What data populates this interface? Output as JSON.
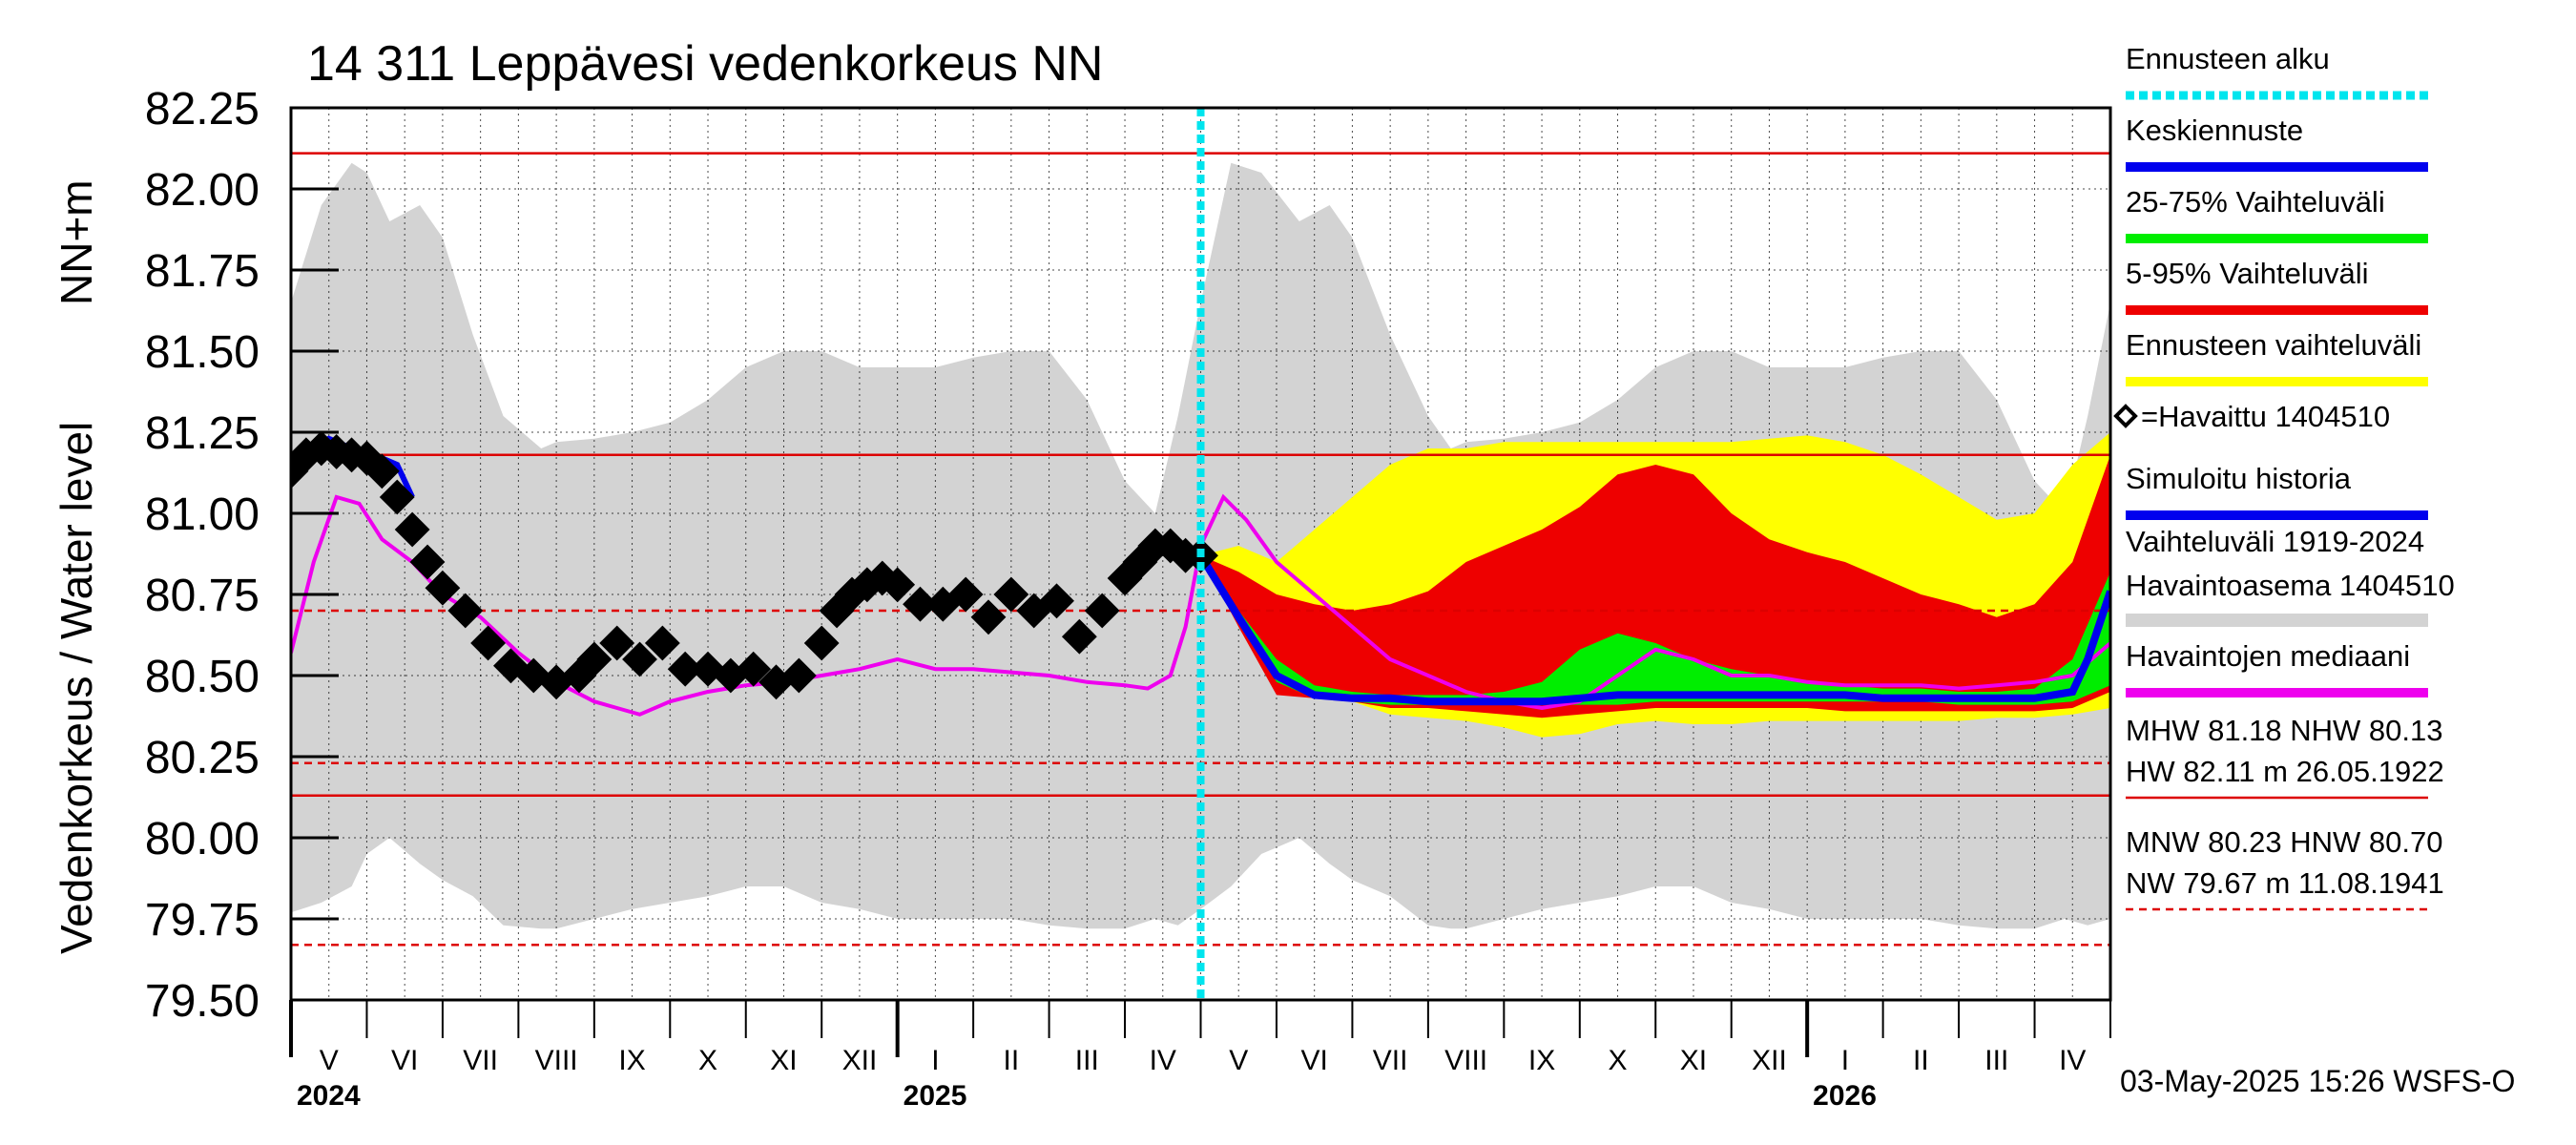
{
  "chart_data": {
    "type": "area",
    "title": "14 311 Leppävesi vedenkorkeus NN",
    "ylabel_main": "Vedenkorkeus / Water level",
    "ylabel_unit": "NN+m",
    "ylim": [
      79.5,
      82.25
    ],
    "yticks": [
      "82.25",
      "82.00",
      "81.75",
      "81.50",
      "81.25",
      "81.00",
      "80.75",
      "80.50",
      "80.25",
      "80.00",
      "79.75",
      "79.50"
    ],
    "x_start_month_index": 0,
    "month_labels": [
      "V",
      "VI",
      "VII",
      "VIII",
      "IX",
      "X",
      "XI",
      "XII",
      "I",
      "II",
      "III",
      "IV",
      "V",
      "VI",
      "VII",
      "VIII",
      "IX",
      "X",
      "XI",
      "XII",
      "I",
      "II",
      "III",
      "IV"
    ],
    "month_lengths": [
      31,
      30,
      31,
      31,
      30,
      31,
      30,
      31,
      31,
      28,
      31,
      30,
      31,
      30,
      31,
      31,
      30,
      31,
      30,
      31,
      31,
      28,
      31,
      30
    ],
    "years": [
      {
        "label": "2024",
        "month": 0
      },
      {
        "label": "2025",
        "month": 8
      },
      {
        "label": "2026",
        "month": 20
      }
    ],
    "forecast_start_month": 12,
    "reference_lines": [
      {
        "name": "HW",
        "value": 82.11,
        "style": "solid"
      },
      {
        "name": "MHW",
        "value": 81.18,
        "style": "solid"
      },
      {
        "name": "HNW",
        "value": 80.7,
        "style": "dashed"
      },
      {
        "name": "MNW",
        "value": 80.23,
        "style": "dashed"
      },
      {
        "name": "NHW",
        "value": 80.13,
        "style": "solid"
      },
      {
        "name": "NW",
        "value": 79.67,
        "style": "dashed"
      }
    ],
    "variation_range": {
      "name": "Vaihteluväli 1919-2024 Havaintoasema 1404510",
      "x_months": [
        0,
        0.4,
        0.8,
        1.0,
        1.3,
        1.7,
        2.0,
        2.4,
        2.8,
        3.3,
        3.5,
        4.0,
        4.5,
        5.0,
        5.5,
        6.0,
        6.5,
        7.0,
        7.5,
        8.0,
        8.5,
        9.0,
        9.5,
        10.0,
        10.5,
        11.0,
        11.4,
        11.7,
        12.0,
        12.4,
        12.8,
        13.3,
        13.7,
        14.0,
        14.5,
        15.0,
        15.3,
        15.5,
        16.0,
        16.5,
        17.0,
        17.5,
        18.0,
        18.5,
        19.0,
        19.5,
        20.0,
        20.5,
        21.0,
        21.5,
        22.0,
        22.5,
        23.0,
        23.4,
        23.7,
        24.0
      ],
      "upper": [
        81.65,
        81.95,
        82.08,
        82.05,
        81.9,
        81.95,
        81.85,
        81.55,
        81.3,
        81.2,
        81.22,
        81.23,
        81.25,
        81.28,
        81.35,
        81.45,
        81.5,
        81.5,
        81.45,
        81.45,
        81.45,
        81.48,
        81.5,
        81.5,
        81.35,
        81.1,
        81.0,
        81.3,
        81.65,
        82.08,
        82.05,
        81.9,
        81.95,
        81.85,
        81.55,
        81.3,
        81.2,
        81.22,
        81.23,
        81.25,
        81.28,
        81.35,
        81.45,
        81.5,
        81.5,
        81.45,
        81.45,
        81.45,
        81.48,
        81.5,
        81.5,
        81.35,
        81.1,
        81.0,
        81.3,
        81.65
      ],
      "lower": [
        79.77,
        79.8,
        79.85,
        79.95,
        80.0,
        79.92,
        79.87,
        79.82,
        79.73,
        79.72,
        79.72,
        79.75,
        79.78,
        79.8,
        79.82,
        79.85,
        79.85,
        79.8,
        79.78,
        79.75,
        79.75,
        79.75,
        79.75,
        79.73,
        79.72,
        79.72,
        79.75,
        79.73,
        79.78,
        79.85,
        79.95,
        80.0,
        79.92,
        79.87,
        79.82,
        79.73,
        79.72,
        79.72,
        79.75,
        79.78,
        79.8,
        79.82,
        79.85,
        79.85,
        79.8,
        79.78,
        79.75,
        79.75,
        79.75,
        79.75,
        79.73,
        79.72,
        79.72,
        79.75,
        79.73,
        79.75
      ]
    },
    "forecast_range": {
      "name": "Ennusteen vaihteluväli",
      "x_months": [
        12.0,
        12.5,
        13.0,
        13.5,
        14.0,
        14.5,
        15.0,
        15.5,
        16.0,
        16.5,
        17.0,
        17.5,
        18.0,
        18.5,
        19.0,
        19.5,
        20.0,
        20.5,
        21.0,
        21.5,
        22.0,
        22.5,
        23.0,
        23.5,
        24.0
      ],
      "upper": [
        80.87,
        80.9,
        80.85,
        80.95,
        81.05,
        81.15,
        81.2,
        81.2,
        81.22,
        81.22,
        81.22,
        81.22,
        81.22,
        81.22,
        81.22,
        81.23,
        81.24,
        81.22,
        81.18,
        81.12,
        81.05,
        80.98,
        81.0,
        81.15,
        81.25
      ],
      "lower": [
        80.87,
        80.72,
        80.58,
        80.44,
        80.42,
        80.38,
        80.37,
        80.36,
        80.34,
        80.31,
        80.32,
        80.35,
        80.36,
        80.35,
        80.35,
        80.36,
        80.36,
        80.36,
        80.36,
        80.36,
        80.36,
        80.37,
        80.37,
        80.38,
        80.4
      ]
    },
    "p5_95": {
      "name": "5-95% Vaihteluväli",
      "x_months": [
        12.0,
        12.5,
        13.0,
        13.5,
        14.0,
        14.5,
        15.0,
        15.5,
        16.0,
        16.5,
        17.0,
        17.5,
        18.0,
        18.5,
        19.0,
        19.5,
        20.0,
        20.5,
        21.0,
        21.5,
        22.0,
        22.5,
        23.0,
        23.5,
        24.0
      ],
      "upper": [
        80.87,
        80.82,
        80.75,
        80.72,
        80.7,
        80.72,
        80.76,
        80.85,
        80.9,
        80.95,
        81.02,
        81.12,
        81.15,
        81.12,
        81.0,
        80.92,
        80.88,
        80.85,
        80.8,
        80.75,
        80.72,
        80.68,
        80.72,
        80.85,
        81.18
      ],
      "lower": [
        80.87,
        80.65,
        80.44,
        80.43,
        80.42,
        80.4,
        80.4,
        80.39,
        80.38,
        80.37,
        80.38,
        80.39,
        80.4,
        80.4,
        80.4,
        80.4,
        80.4,
        80.39,
        80.39,
        80.39,
        80.39,
        80.39,
        80.39,
        80.4,
        80.45
      ]
    },
    "p25_75": {
      "name": "25-75% Vaihteluväli",
      "x_months": [
        12.0,
        12.5,
        13.0,
        13.5,
        14.0,
        14.5,
        15.0,
        15.5,
        16.0,
        16.5,
        17.0,
        17.5,
        18.0,
        18.5,
        19.0,
        19.5,
        20.0,
        20.5,
        21.0,
        21.5,
        22.0,
        22.5,
        23.0,
        23.5,
        24.0
      ],
      "upper": [
        80.87,
        80.7,
        80.55,
        80.47,
        80.45,
        80.44,
        80.44,
        80.44,
        80.45,
        80.48,
        80.58,
        80.63,
        80.6,
        80.55,
        80.52,
        80.5,
        80.48,
        80.47,
        80.46,
        80.46,
        80.45,
        80.45,
        80.46,
        80.55,
        80.82
      ],
      "lower": [
        80.87,
        80.67,
        80.48,
        80.43,
        80.42,
        80.41,
        80.41,
        80.41,
        80.41,
        80.41,
        80.41,
        80.41,
        80.42,
        80.42,
        80.42,
        80.42,
        80.42,
        80.42,
        80.42,
        80.42,
        80.41,
        80.41,
        80.41,
        80.42,
        80.47
      ]
    },
    "mean_forecast": {
      "name": "Keskiennuste",
      "x_months": [
        12.0,
        12.5,
        13.0,
        13.5,
        14.0,
        14.5,
        15.0,
        15.5,
        16.0,
        16.5,
        17.0,
        17.5,
        18.0,
        18.5,
        19.0,
        19.5,
        20.0,
        20.5,
        21.0,
        21.5,
        22.0,
        22.5,
        23.0,
        23.5,
        23.7,
        24.0
      ],
      "y": [
        80.87,
        80.68,
        80.5,
        80.44,
        80.43,
        80.43,
        80.42,
        80.42,
        80.42,
        80.42,
        80.43,
        80.44,
        80.44,
        80.44,
        80.44,
        80.44,
        80.44,
        80.44,
        80.43,
        80.43,
        80.43,
        80.43,
        80.43,
        80.45,
        80.55,
        80.76
      ]
    },
    "median": {
      "name": "Havaintojen mediaani",
      "x_months": [
        0,
        0.3,
        0.6,
        0.9,
        1.2,
        1.6,
        2.0,
        2.5,
        3.0,
        3.5,
        4.0,
        4.3,
        4.6,
        5.0,
        5.5,
        6.0,
        6.5,
        7.0,
        7.5,
        8.0,
        8.5,
        9.0,
        9.5,
        10.0,
        10.5,
        11.0,
        11.3,
        11.6,
        11.8,
        12.0,
        12.3,
        12.6,
        13.0,
        13.5,
        14.0,
        14.5,
        15.0,
        15.5,
        16.0,
        16.5,
        17.0,
        17.5,
        18.0,
        18.5,
        19.0,
        19.5,
        20.0,
        20.5,
        21.0,
        21.5,
        22.0,
        22.5,
        23.0,
        23.5,
        24.0
      ],
      "y": [
        80.57,
        80.85,
        81.05,
        81.03,
        80.92,
        80.85,
        80.75,
        80.68,
        80.57,
        80.48,
        80.42,
        80.4,
        80.38,
        80.42,
        80.45,
        80.47,
        80.48,
        80.5,
        80.52,
        80.55,
        80.52,
        80.52,
        80.51,
        80.5,
        80.48,
        80.47,
        80.46,
        80.5,
        80.65,
        80.9,
        81.05,
        80.98,
        80.85,
        80.75,
        80.65,
        80.55,
        80.5,
        80.45,
        80.42,
        80.4,
        80.42,
        80.5,
        80.58,
        80.55,
        80.5,
        80.5,
        80.48,
        80.47,
        80.47,
        80.47,
        80.46,
        80.47,
        80.48,
        80.5,
        80.6
      ]
    },
    "observed": {
      "name": "=Havaittu 1404510",
      "x_months": [
        0,
        0.2,
        0.4,
        0.6,
        0.8,
        1.0,
        1.2,
        1.4,
        1.6,
        1.8,
        2.0,
        2.3,
        2.6,
        2.9,
        3.2,
        3.5,
        3.8,
        4.0,
        4.3,
        4.6,
        4.9,
        5.2,
        5.5,
        5.8,
        6.1,
        6.4,
        6.7,
        7.0,
        7.2,
        7.4,
        7.6,
        7.8,
        8.0,
        8.3,
        8.6,
        8.9,
        9.2,
        9.5,
        9.8,
        10.1,
        10.4,
        10.7,
        11.0,
        11.2,
        11.4,
        11.6,
        11.8,
        12.0
      ],
      "y": [
        81.13,
        81.18,
        81.2,
        81.19,
        81.18,
        81.17,
        81.13,
        81.05,
        80.95,
        80.85,
        80.77,
        80.7,
        80.6,
        80.53,
        80.5,
        80.48,
        80.5,
        80.55,
        80.6,
        80.55,
        80.6,
        80.52,
        80.52,
        80.5,
        80.52,
        80.48,
        80.5,
        80.6,
        80.7,
        80.75,
        80.78,
        80.8,
        80.78,
        80.72,
        80.72,
        80.75,
        80.68,
        80.75,
        80.7,
        80.73,
        80.62,
        80.7,
        80.8,
        80.85,
        80.9,
        80.9,
        80.87,
        80.87
      ]
    },
    "simulated_history": {
      "name": "Simuloitu historia",
      "x_months": [
        0.2,
        0.5,
        0.8,
        1.1,
        1.4,
        1.6
      ],
      "y": [
        81.2,
        81.23,
        81.2,
        81.18,
        81.15,
        81.05
      ]
    },
    "legend": [
      {
        "label": "Ennusteen alku",
        "color": "#00e5ee",
        "type": "dotted"
      },
      {
        "label": "Keskiennuste",
        "color": "#0000ee",
        "type": "line"
      },
      {
        "label": "25-75% Vaihteluväli",
        "color": "#00ee00",
        "type": "line"
      },
      {
        "label": "5-95% Vaihteluväli",
        "color": "#ee0000",
        "type": "line"
      },
      {
        "label": "Ennusteen vaihteluväli",
        "color": "#ffff00",
        "type": "line"
      },
      {
        "label": "=Havaittu 1404510",
        "color": "#000000",
        "type": "marker"
      },
      {
        "label": "Simuloitu historia",
        "color": "#0000ee",
        "type": "line"
      },
      {
        "label": "Vaihteluväli 1919-2024",
        "color": "#d3d3d3",
        "type": "line"
      },
      {
        "label": " Havaintoasema 1404510",
        "color": "",
        "type": "none"
      },
      {
        "label": "Havaintojen mediaani",
        "color": "#ee00ee",
        "type": "line"
      }
    ],
    "stats": [
      {
        "text": "MHW  81.18 NHW  80.13",
        "underline": "none"
      },
      {
        "text": "HW  82.11 m 26.05.1922",
        "underline": "solid"
      },
      {
        "text": "MNW  80.23 HNW  80.70",
        "underline": "none"
      },
      {
        "text": "NW  79.67 m 11.08.1941",
        "underline": "dashed"
      }
    ],
    "footer": "03-May-2025 15:26 WSFS-O"
  }
}
